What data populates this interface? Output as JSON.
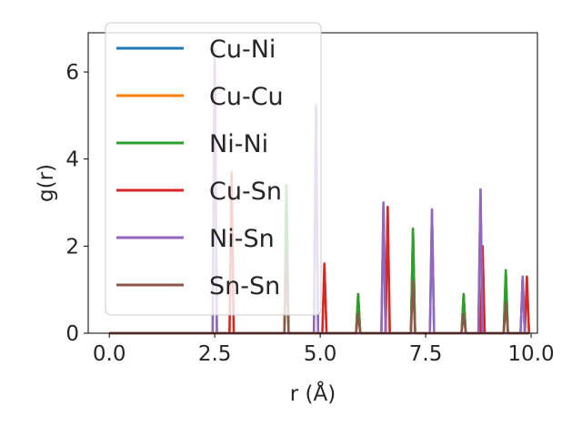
{
  "chart_data": {
    "type": "line",
    "title": "",
    "xlabel": "r (Å)",
    "ylabel": "g(r)",
    "xlim": [
      -0.5,
      10.15
    ],
    "ylim": [
      0,
      6.9
    ],
    "xticks": [
      0.0,
      2.5,
      5.0,
      7.5,
      10.0
    ],
    "xtick_labels": [
      "0.0",
      "2.5",
      "5.0",
      "7.5",
      "10.0"
    ],
    "yticks": [
      0,
      2,
      4,
      6
    ],
    "ytick_labels": [
      "0",
      "2",
      "4",
      "6"
    ],
    "legend_position": "upper-left",
    "grid": false,
    "x_range": [
      0.0,
      9.95
    ],
    "series": [
      {
        "name": "Cu-Ni",
        "color": "#1f77b4",
        "peaks": [
          [
            2.5,
            6.5
          ],
          [
            4.2,
            3.4
          ],
          [
            4.9,
            5.2
          ],
          [
            5.9,
            0.9
          ],
          [
            6.5,
            3.0
          ],
          [
            7.2,
            2.4
          ],
          [
            7.65,
            2.8
          ],
          [
            8.4,
            0.9
          ],
          [
            8.8,
            3.3
          ],
          [
            9.4,
            1.4
          ],
          [
            9.8,
            1.3
          ]
        ]
      },
      {
        "name": "Cu-Cu",
        "color": "#ff7f0e",
        "peaks": [
          [
            2.9,
            3.6
          ],
          [
            4.2,
            3.4
          ],
          [
            5.1,
            1.6
          ],
          [
            5.9,
            0.9
          ],
          [
            6.6,
            2.9
          ],
          [
            7.2,
            2.4
          ],
          [
            8.4,
            0.9
          ],
          [
            8.85,
            2.0
          ],
          [
            9.4,
            1.4
          ],
          [
            9.9,
            1.3
          ]
        ]
      },
      {
        "name": "Ni-Ni",
        "color": "#2ca02c",
        "peaks": [
          [
            4.2,
            3.4
          ],
          [
            5.9,
            0.9
          ],
          [
            7.2,
            2.4
          ],
          [
            8.4,
            0.9
          ],
          [
            9.4,
            1.45
          ]
        ]
      },
      {
        "name": "Cu-Sn",
        "color": "#d62728",
        "peaks": [
          [
            2.9,
            3.7
          ],
          [
            5.1,
            1.6
          ],
          [
            6.6,
            2.9
          ],
          [
            8.85,
            2.0
          ],
          [
            9.9,
            1.3
          ]
        ]
      },
      {
        "name": "Ni-Sn",
        "color": "#9467bd",
        "peaks": [
          [
            2.5,
            6.5
          ],
          [
            4.9,
            5.25
          ],
          [
            6.5,
            3.0
          ],
          [
            7.65,
            2.85
          ],
          [
            8.8,
            3.3
          ],
          [
            9.8,
            1.3
          ]
        ]
      },
      {
        "name": "Sn-Sn",
        "color": "#8c564b",
        "peaks": [
          [
            4.2,
            1.8
          ],
          [
            5.9,
            0.45
          ],
          [
            7.2,
            1.2
          ],
          [
            8.4,
            0.45
          ],
          [
            9.4,
            0.7
          ]
        ]
      }
    ]
  }
}
